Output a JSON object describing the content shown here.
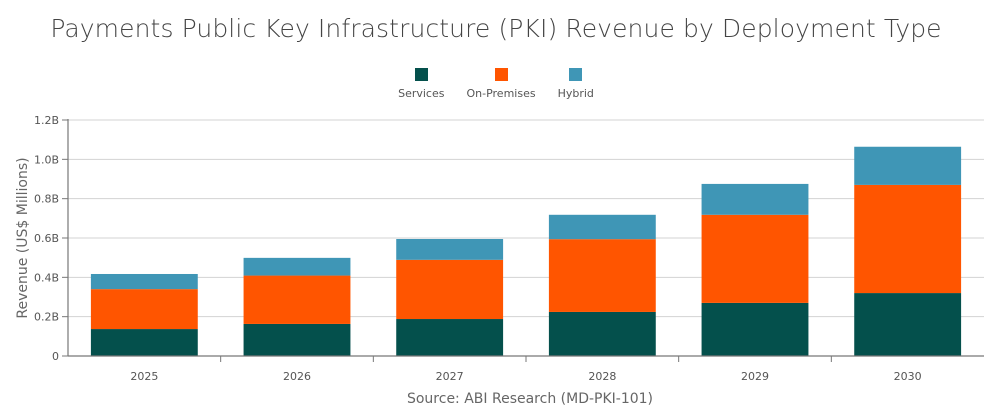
{
  "chart_data": {
    "type": "bar",
    "stacked": true,
    "title": "Payments Public Key Infrastructure (PKI) Revenue by Deployment Type",
    "ylabel": "Revenue (US$ Millions)",
    "xlabel": "",
    "source": "Source: ABI Research (MD-PKI-101)",
    "categories": [
      "2025",
      "2026",
      "2027",
      "2028",
      "2029",
      "2030"
    ],
    "ylim": [
      0,
      1.2
    ],
    "yticks": [
      0,
      0.2,
      0.4,
      0.6,
      0.8,
      1.0,
      1.2
    ],
    "ytick_labels": [
      "0",
      "0.2B",
      "0.4B",
      "0.6B",
      "0.8B",
      "1.0B",
      "1.2B"
    ],
    "grid": true,
    "legend_position": "top",
    "series": [
      {
        "name": "Services",
        "color": "#04504c",
        "values": [
          0.137,
          0.163,
          0.188,
          0.224,
          0.27,
          0.32
        ]
      },
      {
        "name": "On-Premises",
        "color": "#ff5500",
        "values": [
          0.203,
          0.246,
          0.301,
          0.37,
          0.448,
          0.55
        ]
      },
      {
        "name": "Hybrid",
        "color": "#3f96b6",
        "values": [
          0.077,
          0.09,
          0.106,
          0.124,
          0.157,
          0.194
        ]
      }
    ]
  }
}
